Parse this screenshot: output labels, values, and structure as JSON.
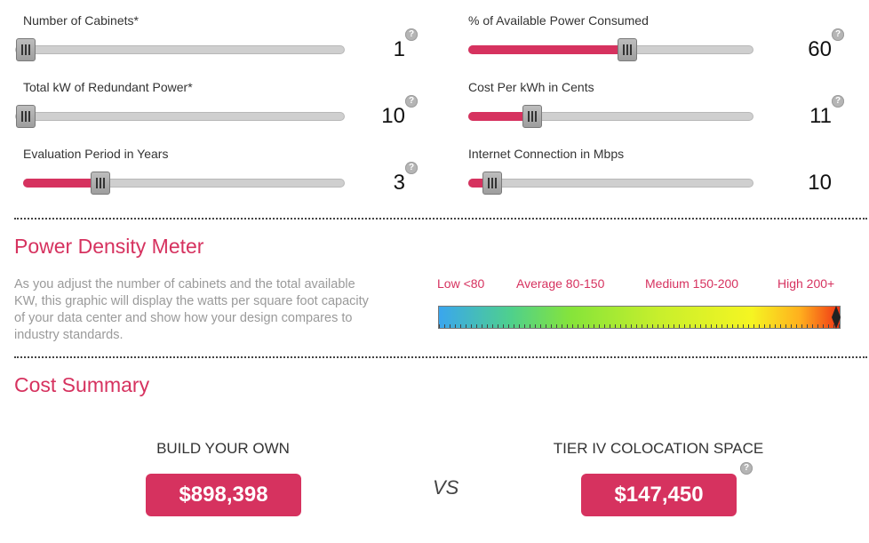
{
  "sliders": [
    {
      "label": "Number of Cabinets*",
      "value": "1",
      "fraction": 0.0,
      "help": "?"
    },
    {
      "label": "Total kW of Redundant Power*",
      "value": "10",
      "fraction": 0.0,
      "help": "?"
    },
    {
      "label": "Evaluation Period in Years",
      "value": "3",
      "fraction": 0.22,
      "help": "?"
    },
    {
      "label": "% of Available Power Consumed",
      "value": "60",
      "fraction": 0.56,
      "help": "?"
    },
    {
      "label": "Cost Per kWh in Cents",
      "value": "11",
      "fraction": 0.2,
      "help": "?"
    },
    {
      "label": "Internet Connection in Mbps",
      "value": "10",
      "fraction": 0.05,
      "help": ""
    }
  ],
  "meter": {
    "title": "Power Density Meter",
    "description": "As you adjust the number of cabinets and the total available KW, this graphic will display the watts per square foot capacity of your data center and show how your design compares to industry standards.",
    "labels": [
      "Low <80",
      "Average 80-150",
      "Medium 150-200",
      "High 200+"
    ],
    "pointer_fraction": 0.98
  },
  "cost": {
    "title": "Cost Summary",
    "build_label": "BUILD YOUR OWN",
    "build_value": "$898,398",
    "vs": "VS",
    "colo_label": "TIER IV COLOCATION SPACE",
    "colo_value": "$147,450",
    "colo_help": "?"
  },
  "colors": {
    "accent": "#d6325f",
    "track": "#cfcfcf"
  }
}
